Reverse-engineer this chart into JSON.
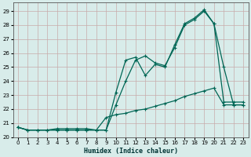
{
  "xlabel": "Humidex (Indice chaleur)",
  "xlim": [
    -0.5,
    23.5
  ],
  "ylim": [
    20.2,
    29.6
  ],
  "yticks": [
    20,
    21,
    22,
    23,
    24,
    25,
    26,
    27,
    28,
    29
  ],
  "xticks": [
    0,
    1,
    2,
    3,
    4,
    5,
    6,
    7,
    8,
    9,
    10,
    11,
    12,
    13,
    14,
    15,
    16,
    17,
    18,
    19,
    20,
    21,
    22,
    23
  ],
  "bg_color": "#d8ecea",
  "grid_color": "#c8aaaa",
  "line_color": "#006655",
  "line1_y": [
    20.7,
    20.5,
    20.5,
    20.5,
    20.5,
    20.5,
    20.5,
    20.5,
    20.5,
    20.5,
    22.3,
    24.0,
    25.5,
    25.8,
    25.3,
    25.1,
    26.4,
    28.0,
    28.4,
    29.0,
    28.1,
    22.5,
    22.5,
    22.5
  ],
  "line2_y": [
    20.7,
    20.5,
    20.5,
    20.5,
    20.5,
    20.5,
    20.5,
    20.5,
    20.5,
    20.5,
    23.2,
    25.5,
    25.7,
    24.4,
    25.2,
    25.0,
    26.6,
    28.1,
    28.5,
    29.1,
    28.1,
    25.0,
    22.3,
    22.3
  ],
  "line3_y": [
    20.7,
    20.5,
    20.5,
    20.5,
    20.6,
    20.6,
    20.6,
    20.6,
    20.5,
    21.4,
    21.6,
    21.7,
    21.9,
    22.0,
    22.2,
    22.4,
    22.6,
    22.9,
    23.1,
    23.3,
    23.5,
    22.3,
    22.3,
    22.3
  ],
  "x": [
    0,
    1,
    2,
    3,
    4,
    5,
    6,
    7,
    8,
    9,
    10,
    11,
    12,
    13,
    14,
    15,
    16,
    17,
    18,
    19,
    20,
    21,
    22,
    23
  ]
}
